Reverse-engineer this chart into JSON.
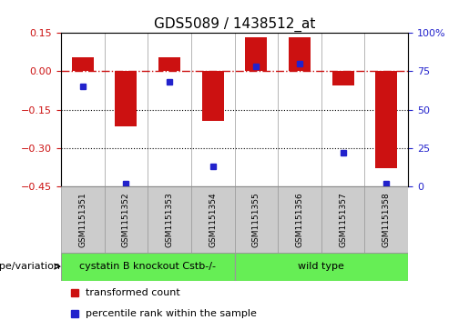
{
  "title": "GDS5089 / 1438512_at",
  "samples": [
    "GSM1151351",
    "GSM1151352",
    "GSM1151353",
    "GSM1151354",
    "GSM1151355",
    "GSM1151356",
    "GSM1151357",
    "GSM1151358"
  ],
  "red_bars": [
    0.055,
    -0.215,
    0.055,
    -0.195,
    0.135,
    0.135,
    -0.055,
    -0.38
  ],
  "blue_dots_pct": [
    65,
    2,
    68,
    13,
    78,
    80,
    22,
    2
  ],
  "ylim_left": [
    -0.45,
    0.15
  ],
  "ylim_right": [
    0,
    100
  ],
  "yticks_left": [
    -0.45,
    -0.3,
    -0.15,
    0.0,
    0.15
  ],
  "yticks_right": [
    0,
    25,
    50,
    75,
    100
  ],
  "groups": [
    {
      "label": "cystatin B knockout Cstb-/-",
      "start": 0,
      "end": 3,
      "color": "#66ee55"
    },
    {
      "label": "wild type",
      "start": 4,
      "end": 7,
      "color": "#66ee55"
    }
  ],
  "group_label": "genotype/variation",
  "red_color": "#cc1111",
  "blue_color": "#2222cc",
  "bar_width": 0.5,
  "zero_line_color": "#cc1111",
  "grid_color": "#000000",
  "legend_red_label": "transformed count",
  "legend_blue_label": "percentile rank within the sample",
  "gray_box_color": "#cccccc",
  "spine_color": "#999999"
}
